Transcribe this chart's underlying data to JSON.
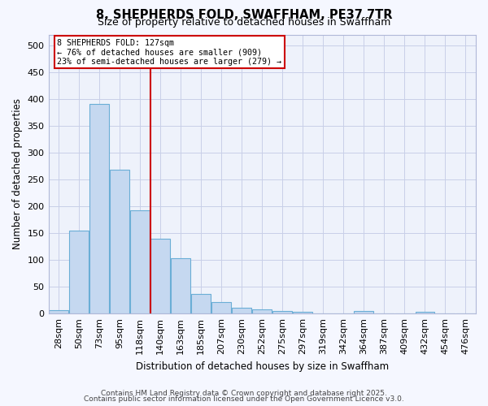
{
  "title": "8, SHEPHERDS FOLD, SWAFFHAM, PE37 7TR",
  "subtitle": "Size of property relative to detached houses in Swaffham",
  "xlabel": "Distribution of detached houses by size in Swaffham",
  "ylabel": "Number of detached properties",
  "bin_labels": [
    "28sqm",
    "50sqm",
    "73sqm",
    "95sqm",
    "118sqm",
    "140sqm",
    "163sqm",
    "185sqm",
    "207sqm",
    "230sqm",
    "252sqm",
    "275sqm",
    "297sqm",
    "319sqm",
    "342sqm",
    "364sqm",
    "387sqm",
    "409sqm",
    "432sqm",
    "454sqm",
    "476sqm"
  ],
  "counts": [
    7,
    155,
    390,
    268,
    192,
    140,
    103,
    36,
    22,
    11,
    8,
    5,
    3,
    0,
    0,
    5,
    0,
    0,
    3,
    0,
    0
  ],
  "bar_color": "#c5d8f0",
  "bar_edge_color": "#6aaed6",
  "property_size_bin": 4,
  "annotation_title": "8 SHEPHERDS FOLD: 127sqm",
  "annotation_line1": "← 76% of detached houses are smaller (909)",
  "annotation_line2": "23% of semi-detached houses are larger (279) →",
  "red_line_color": "#cc0000",
  "annotation_box_color": "#ffffff",
  "annotation_box_edge": "#cc0000",
  "footer1": "Contains HM Land Registry data © Crown copyright and database right 2025.",
  "footer2": "Contains public sector information licensed under the Open Government Licence v3.0.",
  "ylim": [
    0,
    520
  ],
  "yticks": [
    0,
    50,
    100,
    150,
    200,
    250,
    300,
    350,
    400,
    450,
    500
  ],
  "bg_color": "#eef2fb",
  "grid_color": "#c8cfe8",
  "fig_bg_color": "#f5f7ff"
}
